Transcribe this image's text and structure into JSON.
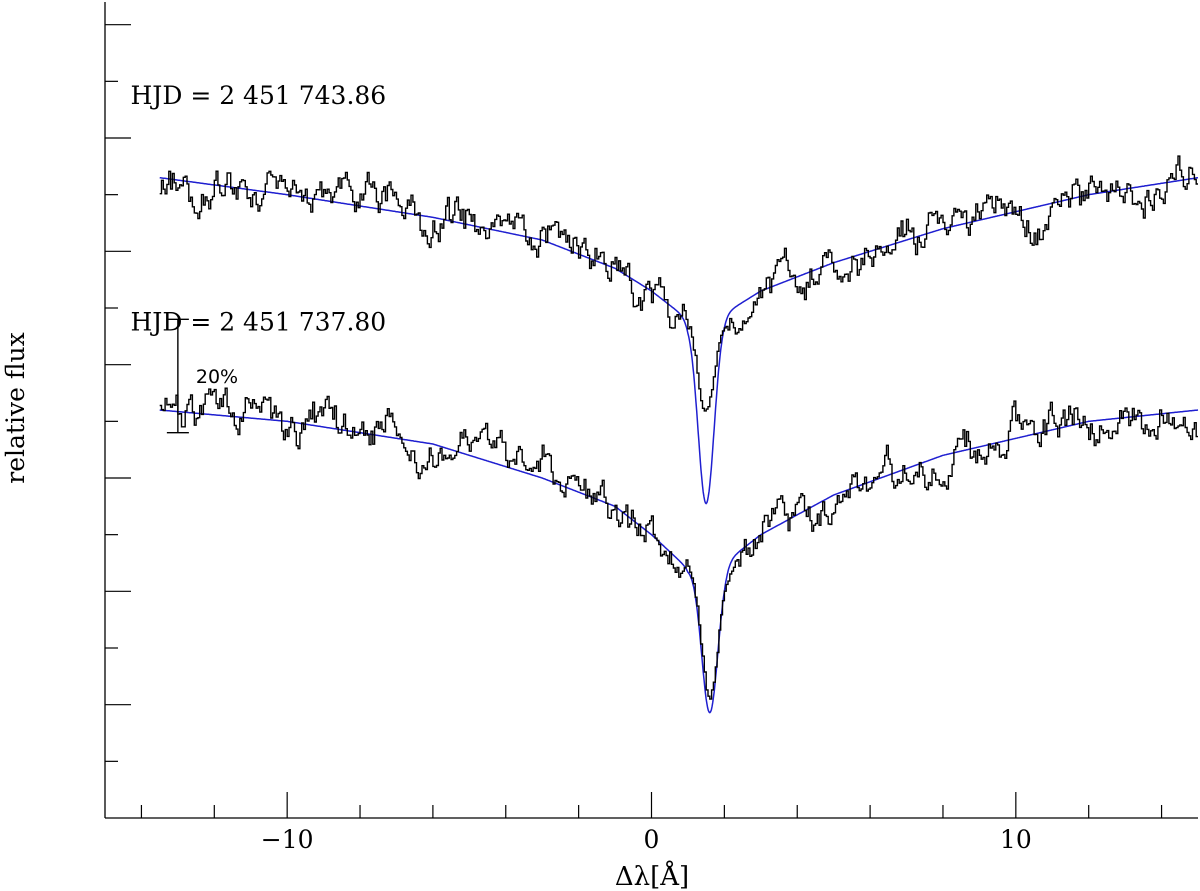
{
  "chart_data": {
    "type": "line",
    "xlabel": "Δλ[Å]",
    "ylabel": "relative flux",
    "xlim": [
      -15,
      15
    ],
    "ylim": [
      0,
      1.44
    ],
    "x_ticks": [
      -10,
      0,
      10
    ],
    "x_tick_labels": [
      "−10",
      "0",
      "10"
    ],
    "scale_bar": {
      "label": "20%",
      "y_from": 0.68,
      "y_to": 0.88,
      "x": -13
    },
    "colors": {
      "observed": "#000000",
      "fit": "#1f1fd0"
    },
    "series": [
      {
        "name": "HJD = 2 451 743.86",
        "label_anchor": {
          "x": -14.3,
          "y": 1.26
        },
        "line_center": 1.5,
        "continuum_x": [
          -13.5,
          -10,
          -6,
          -3,
          -1,
          0,
          1,
          2,
          3,
          5,
          8,
          12,
          15
        ],
        "continuum_y": [
          1.13,
          1.1,
          1.06,
          1.02,
          0.97,
          0.93,
          0.88,
          0.89,
          0.93,
          0.98,
          1.04,
          1.1,
          1.13
        ],
        "line_depth": 0.33,
        "observed_core_depth": 0.17
      },
      {
        "name": "HJD = 2 451 737.80",
        "label_anchor": {
          "x": -14.3,
          "y": 0.86
        },
        "line_center": 1.6,
        "continuum_x": [
          -13.5,
          -10,
          -6,
          -3,
          -1,
          0,
          1,
          2,
          3,
          5,
          8,
          12,
          15
        ],
        "continuum_y": [
          0.72,
          0.7,
          0.66,
          0.6,
          0.55,
          0.5,
          0.44,
          0.45,
          0.5,
          0.57,
          0.64,
          0.7,
          0.72
        ],
        "line_depth": 0.26,
        "observed_core_depth": 0.24
      }
    ]
  }
}
